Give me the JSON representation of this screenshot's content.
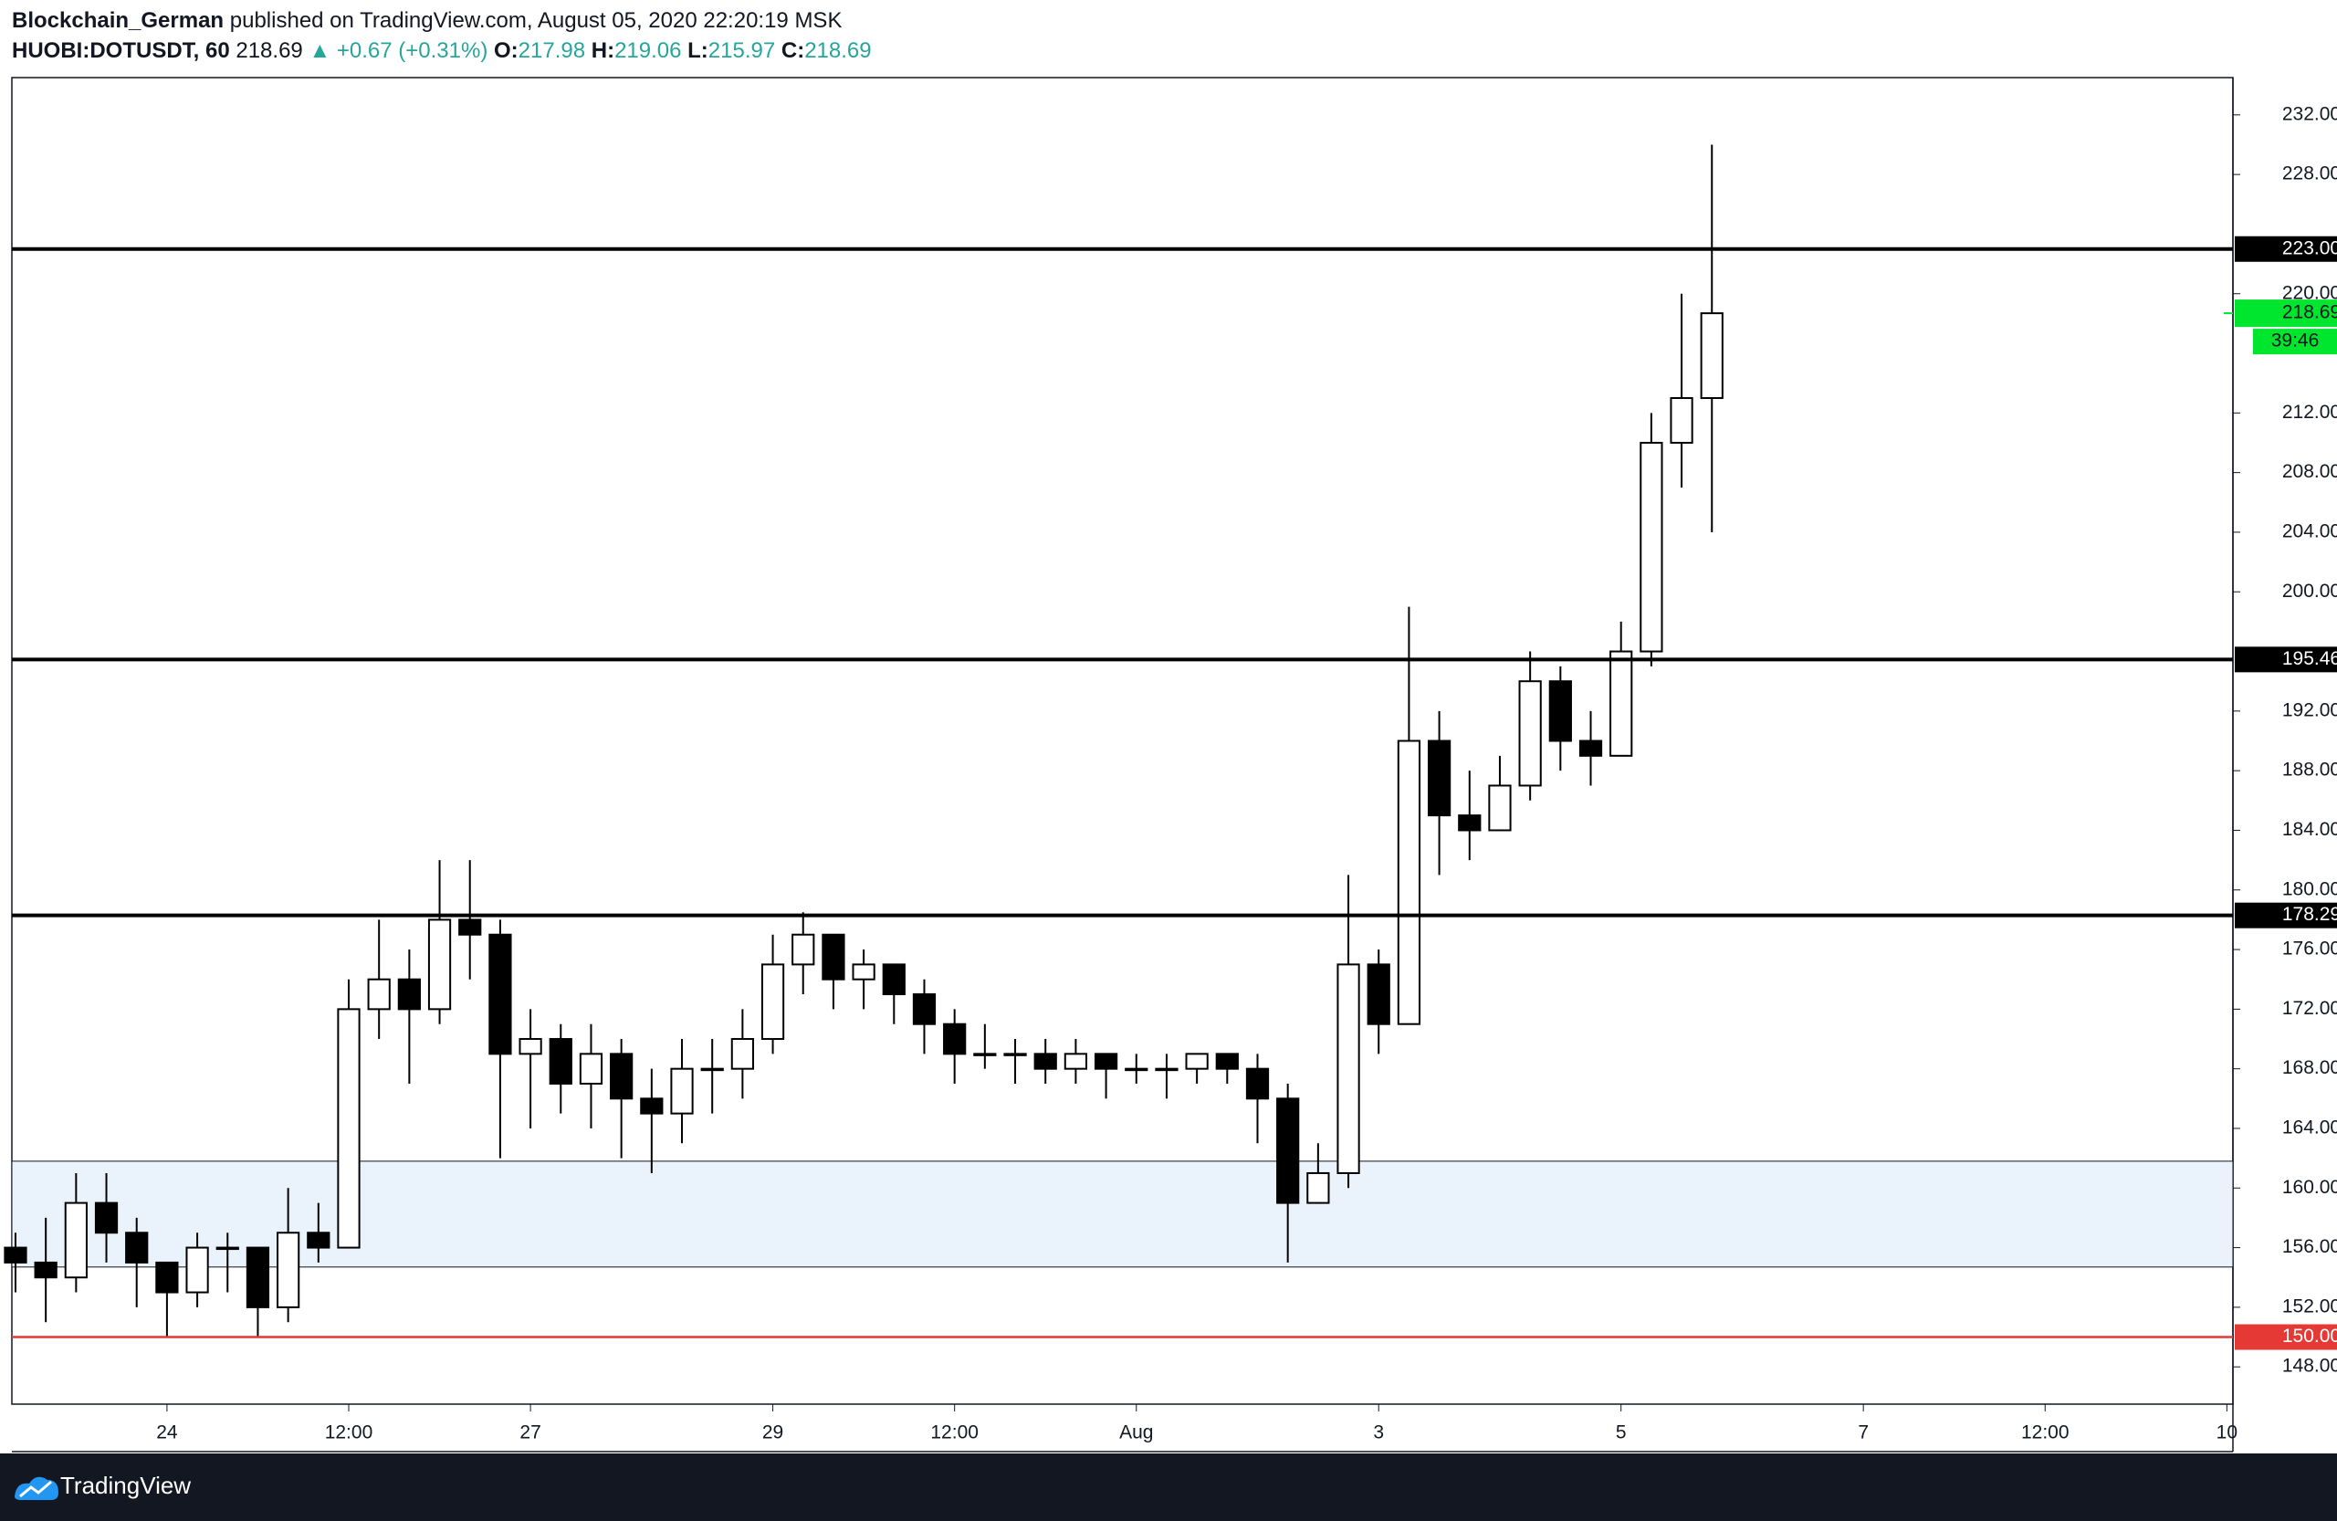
{
  "header": {
    "author": "Blockchain_German",
    "published": " published on TradingView.com, August 05, 2020 22:20:19 MSK",
    "symbol": "HUOBI:DOTUSDT, 60",
    "price": "218.69",
    "change": "▲ +0.67 (+0.31%)",
    "o_label": "O:",
    "o": "217.98",
    "h_label": "H:",
    "h": "219.06",
    "l_label": "L:",
    "l": "215.97",
    "c_label": "C:",
    "c": "218.69"
  },
  "footer": {
    "brand": "TradingView"
  },
  "chart_data": {
    "type": "candlestick",
    "x": [
      -0.25,
      0,
      0.25,
      0.5,
      0.75,
      1,
      1.25,
      1.5,
      1.75,
      2,
      2.25,
      2.5,
      2.75,
      3,
      3.25,
      3.5,
      3.75,
      4,
      4.25,
      4.5,
      4.75,
      5,
      5.25,
      5.5,
      5.75,
      6,
      6.25,
      6.5,
      6.75,
      7,
      7.25,
      7.5,
      7.75,
      8,
      8.25,
      8.5,
      8.75,
      9,
      9.25,
      9.5,
      9.75,
      10,
      10.25,
      10.5,
      10.75,
      11,
      11.25,
      11.5,
      11.75,
      12,
      12.25,
      12.5,
      12.75,
      13,
      13.25,
      13.5,
      13.75
    ],
    "open": [
      156,
      155,
      154,
      159,
      157,
      155,
      153,
      156,
      156,
      152,
      157,
      156,
      172,
      174,
      172,
      178,
      177,
      169,
      170,
      167,
      169,
      166,
      165,
      168,
      168,
      170,
      175,
      177,
      174,
      175,
      173,
      171,
      169,
      169,
      169,
      168,
      169,
      168,
      168,
      168,
      169,
      168,
      166,
      159,
      161,
      175,
      171,
      190,
      185,
      184,
      187,
      194,
      190,
      189,
      196,
      210,
      213
    ],
    "high": [
      157,
      158,
      161,
      161,
      158,
      155,
      157,
      157,
      156,
      160,
      159,
      174,
      178,
      176,
      182,
      182,
      178,
      172,
      171,
      171,
      170,
      168,
      170,
      170,
      172,
      177,
      178.5,
      177,
      176,
      175,
      174,
      172,
      171,
      170,
      170,
      170,
      169,
      169,
      169,
      169,
      169,
      169,
      167,
      163,
      181,
      176,
      199,
      192,
      188,
      189,
      196,
      195,
      192,
      198,
      212,
      220,
      230
    ],
    "low": [
      153,
      151,
      153,
      155,
      152,
      150,
      152,
      153,
      150,
      151,
      155,
      156,
      170,
      167,
      171,
      174,
      162,
      164,
      165,
      164,
      162,
      161,
      163,
      165,
      166,
      169,
      173,
      172,
      172,
      171,
      169,
      167,
      168,
      167,
      167,
      167,
      166,
      167,
      166,
      167,
      167,
      163,
      155,
      159,
      160,
      169,
      171,
      181,
      182,
      184,
      186,
      188,
      187,
      189,
      195,
      207,
      204
    ],
    "close": [
      155,
      154,
      159,
      157,
      155,
      153,
      156,
      156,
      152,
      157,
      156,
      172,
      174,
      172,
      178,
      177,
      169,
      170,
      167,
      169,
      166,
      165,
      168,
      168,
      170,
      175,
      177,
      174,
      175,
      173,
      171,
      169,
      169,
      169,
      168,
      169,
      168,
      168,
      168,
      169,
      168,
      166,
      159,
      161,
      175,
      171,
      190,
      185,
      184,
      187,
      194,
      190,
      189,
      196,
      210,
      213,
      218.69
    ],
    "up_color": "#ffffff",
    "down_color": "#000000",
    "border_color": "#000000",
    "xlim": [
      -0.28,
      18.05
    ],
    "xticks": [
      {
        "value": 1,
        "label": "24"
      },
      {
        "value": 2.5,
        "label": "12:00"
      },
      {
        "value": 4,
        "label": "27"
      },
      {
        "value": 6,
        "label": "29"
      },
      {
        "value": 7.5,
        "label": "12:00"
      },
      {
        "value": 9,
        "label": "Aug"
      },
      {
        "value": 11,
        "label": "3"
      },
      {
        "value": 13,
        "label": "5"
      },
      {
        "value": 15,
        "label": "7"
      },
      {
        "value": 16.5,
        "label": "12:00"
      },
      {
        "value": 18,
        "label": "10"
      }
    ],
    "ylim": [
      145.5,
      234.5
    ],
    "yticks": [
      {
        "value": 148,
        "label": "148.00"
      },
      {
        "value": 152,
        "label": "152.00"
      },
      {
        "value": 156,
        "label": "156.00"
      },
      {
        "value": 160,
        "label": "160.00"
      },
      {
        "value": 164,
        "label": "164.00"
      },
      {
        "value": 168,
        "label": "168.00"
      },
      {
        "value": 172,
        "label": "172.00"
      },
      {
        "value": 176,
        "label": "176.00"
      },
      {
        "value": 180,
        "label": "180.00"
      },
      {
        "value": 184,
        "label": "184.00"
      },
      {
        "value": 188,
        "label": "188.00"
      },
      {
        "value": 192,
        "label": "192.00"
      },
      {
        "value": 200,
        "label": "200.00"
      },
      {
        "value": 204,
        "label": "204.00"
      },
      {
        "value": 208,
        "label": "208.00"
      },
      {
        "value": 212,
        "label": "212.00"
      },
      {
        "value": 220,
        "label": "220.00"
      },
      {
        "value": 228,
        "label": "228.00"
      },
      {
        "value": 232,
        "label": "232.00"
      }
    ],
    "hlines": [
      {
        "value": 223,
        "label": "223.00",
        "color": "#000000"
      },
      {
        "value": 195.46,
        "label": "195.46",
        "color": "#000000"
      },
      {
        "value": 178.29,
        "label": "178.29",
        "color": "#000000"
      },
      {
        "value": 150,
        "label": "150.00",
        "color": "#e53935"
      }
    ],
    "zone": [
      154.7,
      161.8
    ],
    "zone_color": "#eaf2fb",
    "last_price": 218.69,
    "last_color": "#00e62e",
    "countdown": "39:46"
  }
}
